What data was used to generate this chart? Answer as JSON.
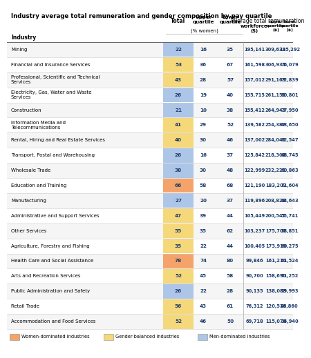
{
  "title": "Industry average total remuneration and gender composition by pay quartile",
  "industries": [
    "Mining",
    "Financial and Insurance Services",
    "Professional, Scientific and Technical\nServices",
    "Electricity, Gas, Water and Waste\nServices",
    "Construction",
    "Information Media and\nTelecommunications",
    "Rental, Hiring and Real Estate Services",
    "Transport, Postal and Warehousing",
    "Wholesale Trade",
    "Education and Training",
    "Manufacturing",
    "Administrative and Support Services",
    "Other Services",
    "Agriculture, Forestry and Fishing",
    "Health Care and Social Assistance",
    "Arts and Recreation Services",
    "Public Administration and Safety",
    "Retail Trade",
    "Accommodation and Food Services"
  ],
  "total_pct": [
    22,
    53,
    43,
    26,
    21,
    41,
    40,
    26,
    38,
    66,
    27,
    47,
    55,
    35,
    78,
    52,
    26,
    56,
    52
  ],
  "upper_q_pct": [
    16,
    36,
    28,
    19,
    10,
    29,
    30,
    16,
    30,
    58,
    20,
    39,
    35,
    22,
    74,
    45,
    22,
    43,
    46
  ],
  "lower_q_pct": [
    35,
    67,
    57,
    40,
    38,
    52,
    46,
    37,
    48,
    68,
    37,
    44,
    62,
    44,
    80,
    58,
    28,
    61,
    50
  ],
  "workforce_rem": [
    "195,141",
    "161,598",
    "157,012",
    "155,715",
    "155,412",
    "139,582",
    "137,002",
    "125,842",
    "122,999",
    "121,190",
    "119,896",
    "105,449",
    "103,237",
    "100,405",
    "99,846",
    "90,700",
    "90,135",
    "76,312",
    "69,718"
  ],
  "upper_q_rem": [
    "309,639",
    "306,934",
    "291,163",
    "261,152",
    "264,943",
    "254,382",
    "284,041",
    "218,308",
    "232,221",
    "183,202",
    "208,828",
    "200,541",
    "175,701",
    "173,910",
    "161,214",
    "158,690",
    "138,083",
    "120,518",
    "115,076"
  ],
  "lower_q_rem": [
    "115,292",
    "76,079",
    "72,839",
    "80,801",
    "77,950",
    "63,650",
    "62,547",
    "68,745",
    "60,863",
    "71,604",
    "64,643",
    "55,741",
    "58,851",
    "60,275",
    "61,524",
    "51,252",
    "59,993",
    "46,860",
    "34,940"
  ],
  "row_colors": [
    "#adc6e8",
    "#f5d87a",
    "#f5d87a",
    "#adc6e8",
    "#adc6e8",
    "#f5d87a",
    "#f5d87a",
    "#adc6e8",
    "#adc6e8",
    "#f4a46a",
    "#adc6e8",
    "#f5d87a",
    "#f5d87a",
    "#f5d87a",
    "#f4a46a",
    "#f5d87a",
    "#adc6e8",
    "#f5d87a",
    "#f5d87a"
  ],
  "legend": [
    {
      "label": "Women-dominated industries",
      "color": "#f4a46a"
    },
    {
      "label": "Gender-balanced industries",
      "color": "#f5d87a"
    },
    {
      "label": "Men-dominated industries",
      "color": "#adc6e8"
    }
  ],
  "data_text_color": "#1a3a6b",
  "title_fontsize": 6.2,
  "header_fontsize": 5.5,
  "cell_fontsize": 5.2,
  "industry_fontsize": 5.0,
  "legend_fontsize": 4.8
}
